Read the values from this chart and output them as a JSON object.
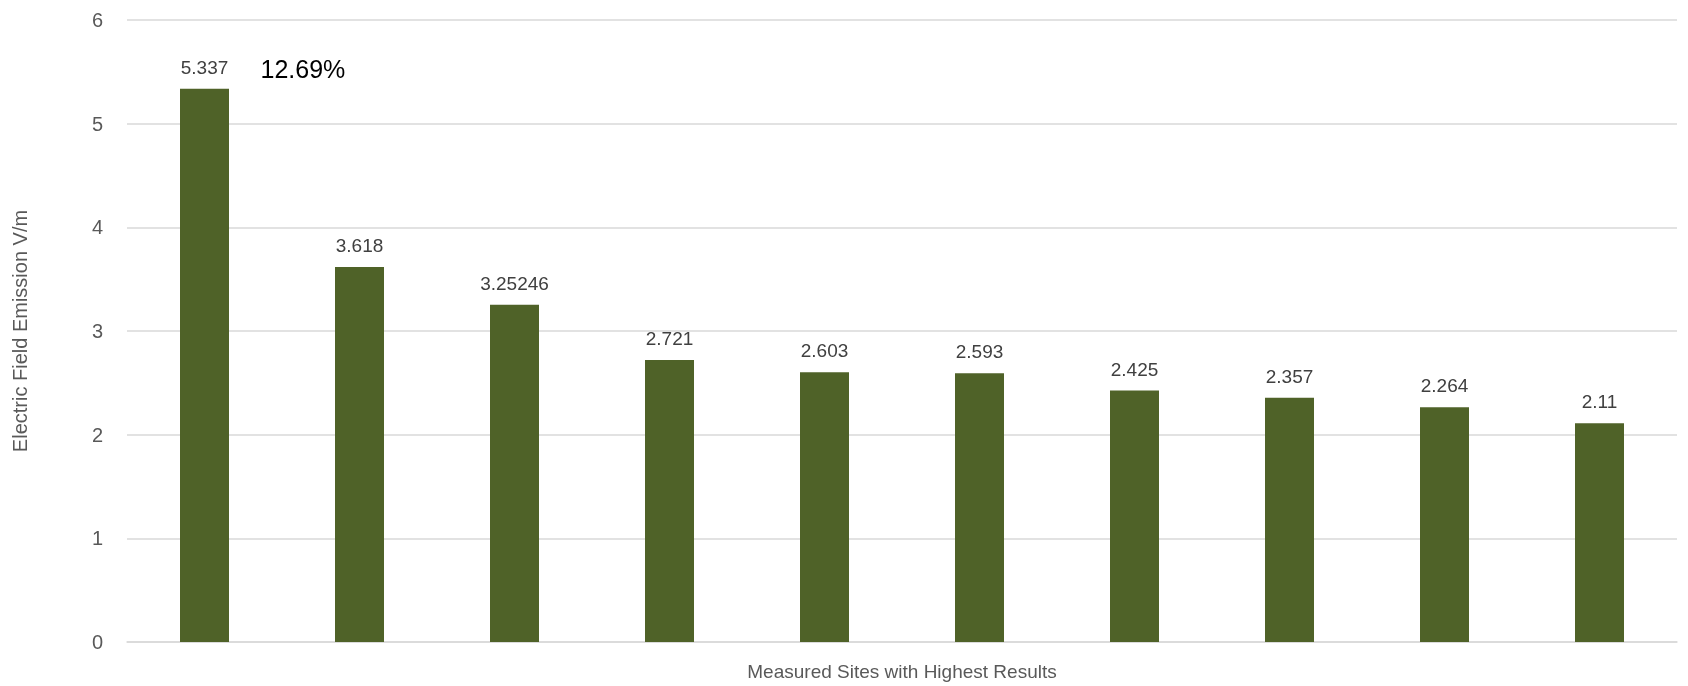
{
  "chart_data": {
    "type": "bar",
    "ylabel": "Electric Field Emission V/m",
    "xlabel": "Measured Sites with Highest Results",
    "categories": [
      null,
      null,
      null,
      null,
      null,
      null,
      null,
      null,
      null,
      null
    ],
    "values": [
      5.337,
      3.618,
      3.25246,
      2.721,
      2.603,
      2.593,
      2.425,
      2.357,
      2.264,
      2.11
    ],
    "color": "#4f6228",
    "ylim": [
      0,
      6
    ],
    "yticks": [
      0,
      1,
      2,
      3,
      4,
      5,
      6
    ],
    "grid": "y",
    "data_labels": true,
    "annotations": [
      "12.69%"
    ]
  }
}
